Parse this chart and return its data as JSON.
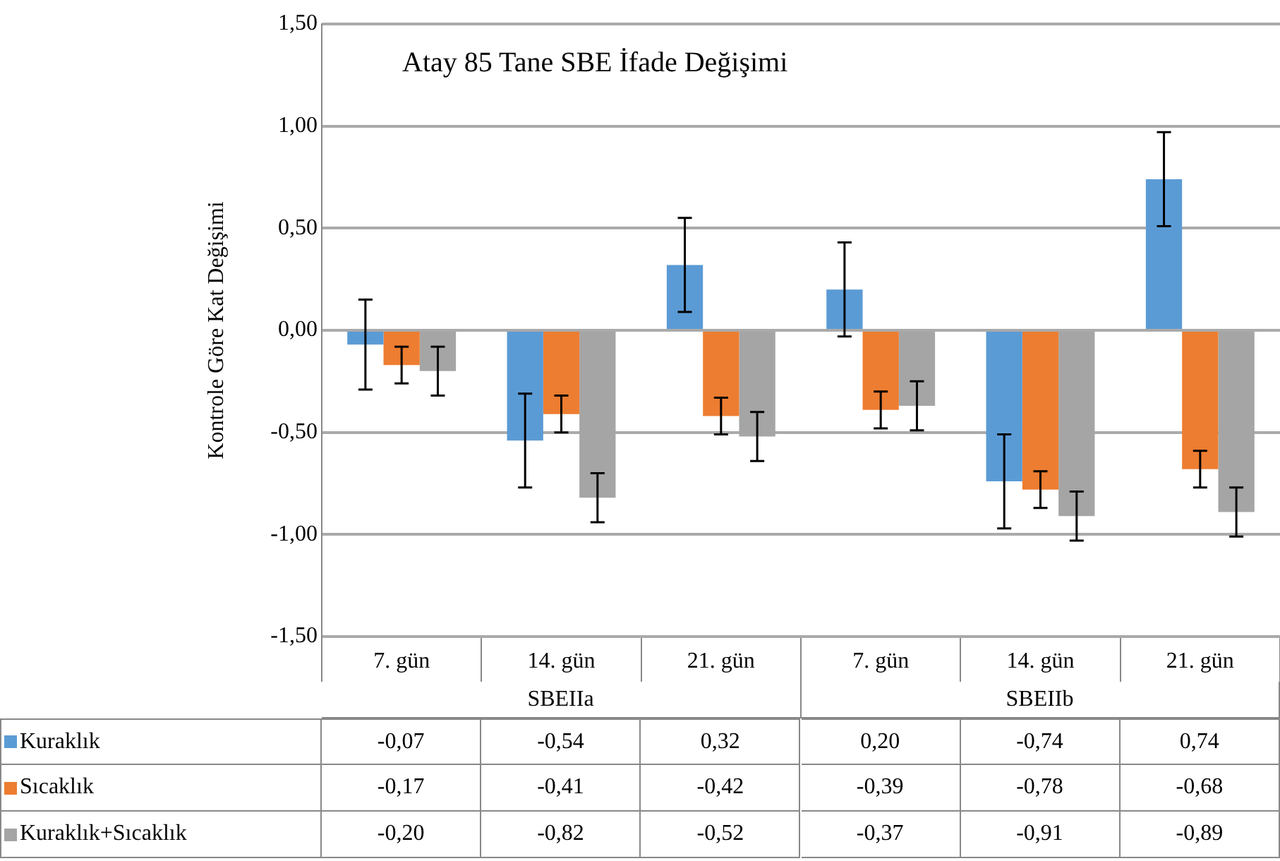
{
  "chart_data": {
    "type": "bar",
    "title": "Atay 85 Tane SBE İfade Değişimi",
    "ylabel": "Kontrole Göre Kat Değişimi",
    "categories": [
      "7. gün",
      "14. gün",
      "21. gün",
      "7. gün",
      "14. gün",
      "21. gün"
    ],
    "annotations": [
      "SBEIIa",
      "SBEIIb"
    ],
    "series": [
      {
        "name": "Kuraklık",
        "color": "#5b9bd5",
        "values": [
          -0.07,
          -0.54,
          0.32,
          0.2,
          -0.74,
          0.74
        ],
        "value_labels": [
          "-0,07",
          "-0,54",
          "0,32",
          "0,20",
          "-0,74",
          "0,74"
        ],
        "errors": [
          0.22,
          0.23,
          0.23,
          0.23,
          0.23,
          0.23
        ]
      },
      {
        "name": "Sıcaklık",
        "color": "#ed7d31",
        "values": [
          -0.17,
          -0.41,
          -0.42,
          -0.39,
          -0.78,
          -0.68
        ],
        "value_labels": [
          "-0,17",
          "-0,41",
          "-0,42",
          "-0,39",
          "-0,78",
          "-0,68"
        ],
        "errors": [
          0.09,
          0.09,
          0.09,
          0.09,
          0.09,
          0.09
        ]
      },
      {
        "name": "Kuraklık+Sıcaklık",
        "color": "#a5a5a5",
        "values": [
          -0.2,
          -0.82,
          -0.52,
          -0.37,
          -0.91,
          -0.89
        ],
        "value_labels": [
          "-0,20",
          "-0,82",
          "-0,52",
          "-0,37",
          "-0,91",
          "-0,89"
        ],
        "errors": [
          0.12,
          0.12,
          0.12,
          0.12,
          0.12,
          0.12
        ]
      }
    ],
    "ylim": [
      -1.5,
      1.5
    ],
    "yticks": [
      {
        "value": -1.5,
        "label": "-1,50"
      },
      {
        "value": -1,
        "label": "-1,00"
      },
      {
        "value": -0.5,
        "label": "-0,50"
      },
      {
        "value": 0,
        "label": "0,00"
      },
      {
        "value": 0.5,
        "label": "0,50"
      },
      {
        "value": 1,
        "label": "1,00"
      },
      {
        "value": 1.5,
        "label": "1,50"
      }
    ],
    "grid": "y",
    "legend": "bottom"
  }
}
